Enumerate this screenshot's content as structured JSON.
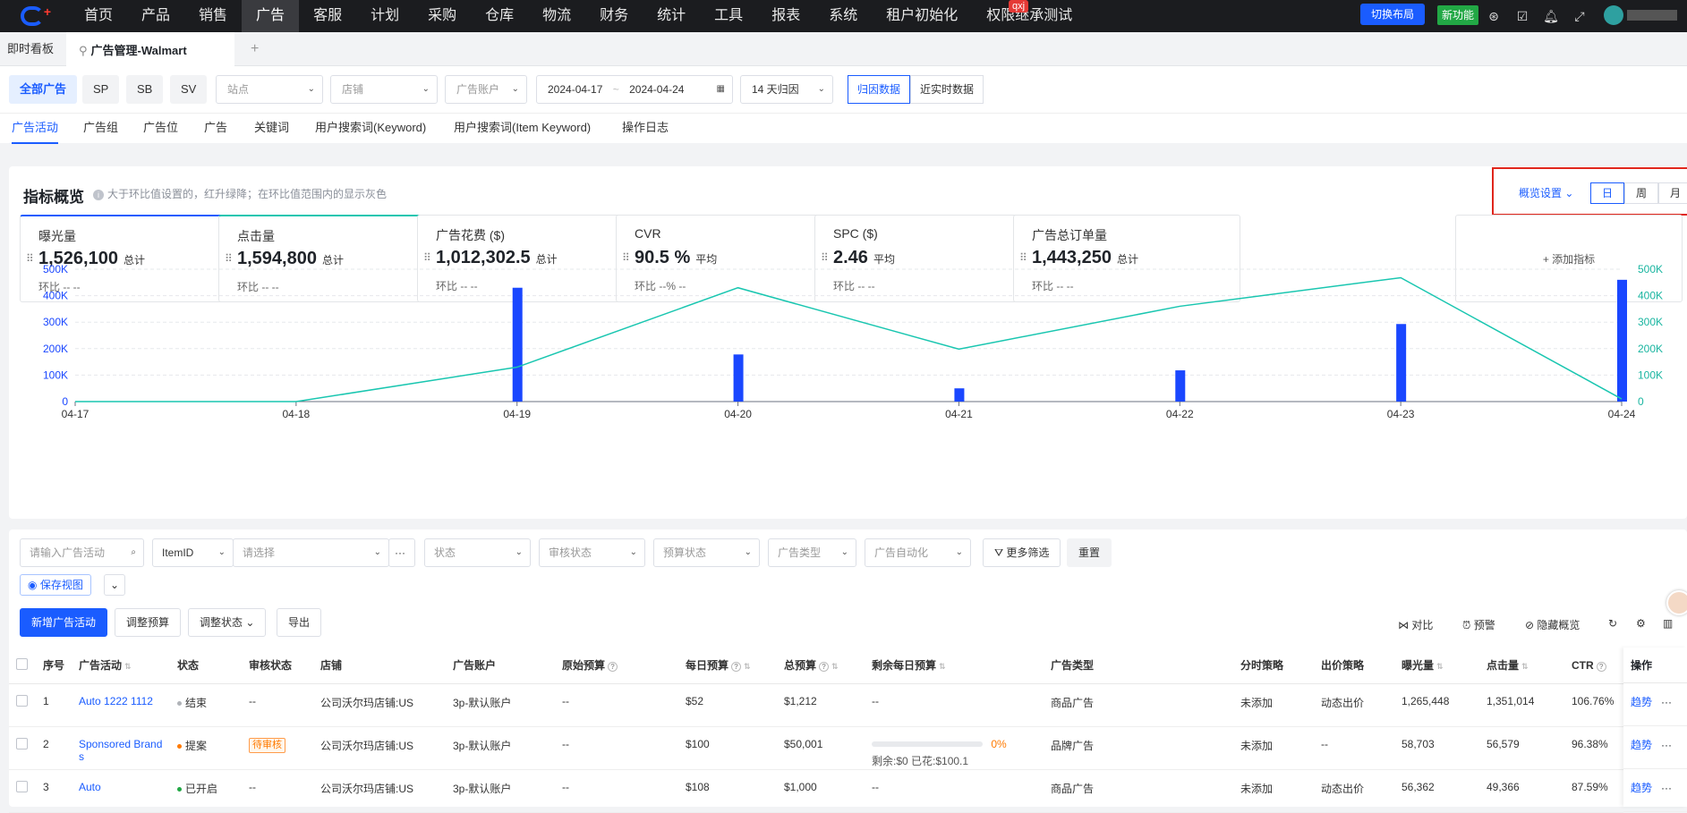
{
  "topnav": {
    "items": [
      "首页",
      "产品",
      "销售",
      "广告",
      "客服",
      "计划",
      "采购",
      "仓库",
      "物流",
      "财务",
      "统计",
      "工具",
      "报表",
      "系统",
      "租户初始化",
      "权限继承测试"
    ],
    "active_index": 3,
    "badge": "qxj",
    "switch_layout": "切换布局",
    "new_feature": "新功能"
  },
  "tabs": {
    "home": "即时看板",
    "current": "广告管理-Walmart",
    "add": "+"
  },
  "filters": {
    "chips": [
      "全部广告",
      "SP",
      "SB",
      "SV"
    ],
    "site_placeholder": "站点",
    "shop_placeholder": "店铺",
    "account_placeholder": "广告账户",
    "date_start": "2024-04-17",
    "date_sep": "~",
    "date_end": "2024-04-24",
    "attribution": "14 天归因",
    "data_modes": [
      "归因数据",
      "近实时数据"
    ]
  },
  "subtabs": [
    "广告活动",
    "广告组",
    "广告位",
    "广告",
    "关键词",
    "用户搜索词(Keyword)",
    "用户搜索词(Item Keyword)",
    "操作日志"
  ],
  "overview": {
    "title": "指标概览",
    "hint": "大于环比值设置的，红升绿降；在环比值范围内的显示灰色",
    "settings": "概览设置",
    "periods": [
      "日",
      "周",
      "月"
    ],
    "add_metric": "+ 添加指标",
    "metrics": [
      {
        "label": "曝光量",
        "value": "1,526,100",
        "unit": "",
        "agg": "总计",
        "cmp": "环比  --  --"
      },
      {
        "label": "点击量",
        "value": "1,594,800",
        "unit": "",
        "agg": "总计",
        "cmp": "环比  --  --"
      },
      {
        "label": "广告花费 ($)",
        "value": "1,012,302.5",
        "unit": "",
        "agg": "总计",
        "cmp": "环比  --  --"
      },
      {
        "label": "CVR",
        "value": "90.5",
        "unit": " %",
        "agg": "平均",
        "cmp": "环比  --%  --"
      },
      {
        "label": "SPC ($)",
        "value": "2.46",
        "unit": "",
        "agg": "平均",
        "cmp": "环比  --  --"
      },
      {
        "label": "广告总订单量",
        "value": "1,443,250",
        "unit": "",
        "agg": "总计",
        "cmp": "环比  --  --"
      }
    ]
  },
  "chart_data": {
    "type": "bar",
    "categories": [
      "04-17",
      "04-18",
      "04-19",
      "04-20",
      "04-21",
      "04-22",
      "04-23",
      "04-24"
    ],
    "series": [
      {
        "type": "bar",
        "values": [
          0,
          0,
          430000,
          178000,
          50000,
          118000,
          293000,
          460000
        ],
        "color": "#1a47ff"
      },
      {
        "type": "line",
        "values": [
          0,
          0,
          130000,
          430000,
          198000,
          360000,
          468000,
          10000
        ],
        "color": "#19c6b0"
      }
    ],
    "left_ticks": [
      "0",
      "100K",
      "200K",
      "300K",
      "400K",
      "500K"
    ],
    "right_ticks": [
      "0",
      "100K",
      "200K",
      "300K",
      "400K",
      "500K"
    ],
    "ylim": [
      0,
      500000
    ],
    "grid": true
  },
  "toolbar": {
    "search_placeholder": "请输入广告活动",
    "itemid": "ItemID",
    "itemid_placeholder": "请选择",
    "more": "···",
    "status": "状态",
    "review_status": "审核状态",
    "budget_status": "预算状态",
    "ad_type": "广告类型",
    "ad_automation": "广告自动化",
    "more_filters": "更多筛选",
    "reset": "重置",
    "save_view": "保存视图",
    "new_campaign": "新增广告活动",
    "adjust_budget": "调整预算",
    "adjust_status": "调整状态",
    "export": "导出",
    "compare": "对比",
    "alert": "预警",
    "hide_overview": "隐藏概览"
  },
  "table": {
    "headers": [
      "序号",
      "广告活动",
      "状态",
      "审核状态",
      "店铺",
      "广告账户",
      "原始预算",
      "每日预算",
      "总预算",
      "剩余每日预算",
      "广告类型",
      "分时策略",
      "出价策略",
      "曝光量",
      "点击量",
      "CTR"
    ],
    "ops_header": "操作",
    "ops_trend": "趋势",
    "ops_more": "···",
    "rows": [
      {
        "no": "1",
        "name": "Auto  1222 1112",
        "status": "结束",
        "status_color": "#b0b3b8",
        "review": "--",
        "review_tag": false,
        "shop": "公司沃尔玛店铺:US",
        "account": "3p-默认账户",
        "orig_budget": "--",
        "daily_budget": "$52",
        "total_budget": "$1,212",
        "remain": "--",
        "remain_pct": "",
        "remain_note": "",
        "ad_type": "商品广告",
        "time_strategy": "未添加",
        "bid_strategy": "动态出价",
        "impressions": "1,265,448",
        "clicks": "1,351,014",
        "ctr": "106.76%"
      },
      {
        "no": "2",
        "name": "Sponsored Brands",
        "status": "提案",
        "status_color": "#ff7a00",
        "review": "待审核",
        "review_tag": true,
        "shop": "公司沃尔玛店铺:US",
        "account": "3p-默认账户",
        "orig_budget": "--",
        "daily_budget": "$100",
        "total_budget": "$50,001",
        "remain": "",
        "remain_pct": "0%",
        "remain_note": "剩余:$0  已花:$100.1",
        "ad_type": "品牌广告",
        "time_strategy": "未添加",
        "bid_strategy": "--",
        "impressions": "58,703",
        "clicks": "56,579",
        "ctr": "96.38%"
      },
      {
        "no": "3",
        "name": "Auto",
        "status": "已开启",
        "status_color": "#22a845",
        "review": "--",
        "review_tag": false,
        "shop": "公司沃尔玛店铺:US",
        "account": "3p-默认账户",
        "orig_budget": "--",
        "daily_budget": "$108",
        "total_budget": "$1,000",
        "remain": "--",
        "remain_pct": "",
        "remain_note": "",
        "ad_type": "商品广告",
        "time_strategy": "未添加",
        "bid_strategy": "动态出价",
        "impressions": "56,362",
        "clicks": "49,366",
        "ctr": "87.59%"
      }
    ]
  }
}
